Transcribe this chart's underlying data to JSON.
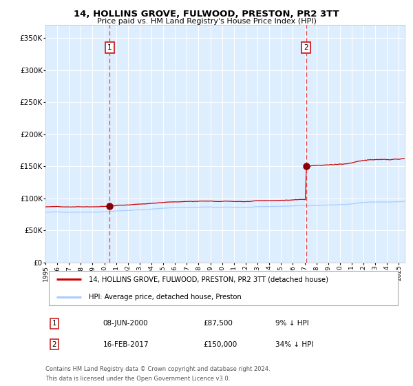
{
  "title": "14, HOLLINS GROVE, FULWOOD, PRESTON, PR2 3TT",
  "subtitle": "Price paid vs. HM Land Registry's House Price Index (HPI)",
  "ylim": [
    0,
    370000
  ],
  "yticks": [
    0,
    50000,
    100000,
    150000,
    200000,
    250000,
    300000,
    350000
  ],
  "ytick_labels": [
    "£0",
    "£50K",
    "£100K",
    "£150K",
    "£200K",
    "£250K",
    "£300K",
    "£350K"
  ],
  "background_color": "#ffffff",
  "plot_bg_color": "#ddeeff",
  "grid_color": "#ffffff",
  "hpi_line_color": "#aaccff",
  "price_line_color": "#cc0000",
  "vline_color": "#ee4444",
  "dot_color": "#880000",
  "sale1_date_num": 2000.44,
  "sale1_price": 87500,
  "sale2_date_num": 2017.12,
  "sale2_price": 150000,
  "legend_label1": "14, HOLLINS GROVE, FULWOOD, PRESTON, PR2 3TT (detached house)",
  "legend_label2": "HPI: Average price, detached house, Preston",
  "table_row1_date": "08-JUN-2000",
  "table_row1_price": "£87,500",
  "table_row1_hpi": "9% ↓ HPI",
  "table_row2_date": "16-FEB-2017",
  "table_row2_price": "£150,000",
  "table_row2_hpi": "34% ↓ HPI",
  "footnote1": "Contains HM Land Registry data © Crown copyright and database right 2024.",
  "footnote2": "This data is licensed under the Open Government Licence v3.0.",
  "xmin": 1995.0,
  "xmax": 2025.5,
  "xticks": [
    1995,
    1996,
    1997,
    1998,
    1999,
    2000,
    2001,
    2002,
    2003,
    2004,
    2005,
    2006,
    2007,
    2008,
    2009,
    2010,
    2011,
    2012,
    2013,
    2014,
    2015,
    2016,
    2017,
    2018,
    2019,
    2020,
    2021,
    2022,
    2023,
    2024,
    2025
  ]
}
